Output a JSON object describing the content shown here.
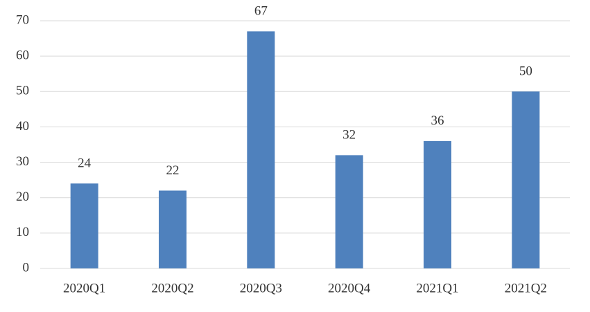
{
  "chart_data": {
    "type": "bar",
    "categories": [
      "2020Q1",
      "2020Q2",
      "2020Q3",
      "2020Q4",
      "2021Q1",
      "2021Q2"
    ],
    "values": [
      24,
      22,
      67,
      32,
      36,
      50
    ],
    "color": "#4f81bd",
    "ylim": [
      0,
      70
    ],
    "yticks": [
      0,
      10,
      20,
      30,
      40,
      50,
      60,
      70
    ],
    "grid": true,
    "data_labels": true
  }
}
